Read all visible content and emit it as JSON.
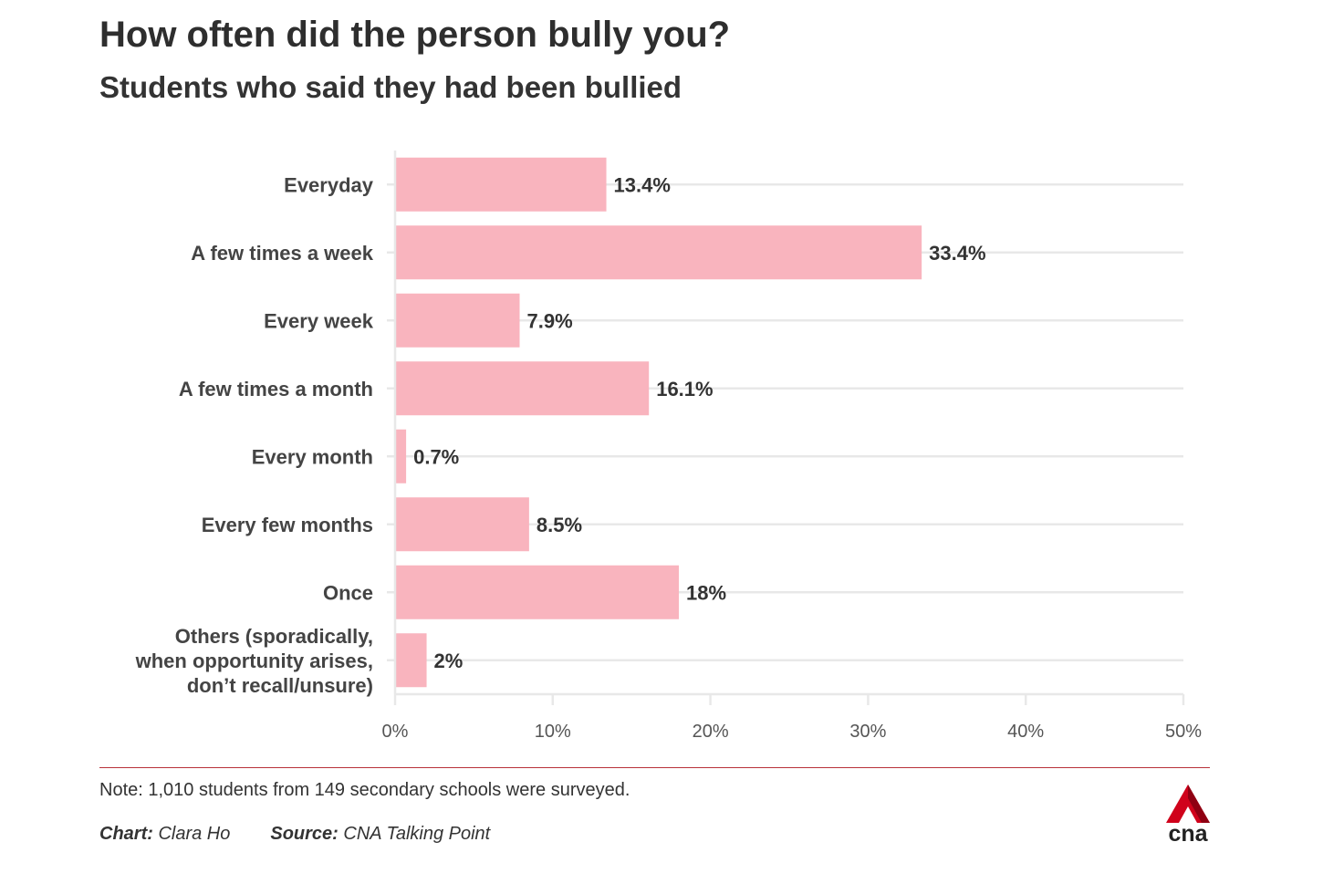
{
  "header": {
    "title": "How often did the person bully you?",
    "subtitle": "Students who said they had been bullied"
  },
  "chart_data": {
    "type": "bar",
    "orientation": "horizontal",
    "categories": [
      [
        "Everyday"
      ],
      [
        "A few times a week"
      ],
      [
        "Every week"
      ],
      [
        "A few times a month"
      ],
      [
        "Every month"
      ],
      [
        "Every few months"
      ],
      [
        "Once"
      ],
      [
        "Others (sporadically,",
        "when opportunity arises,",
        "don’t recall/unsure)"
      ]
    ],
    "values": [
      13.4,
      33.4,
      7.9,
      16.1,
      0.7,
      8.5,
      18,
      2
    ],
    "value_labels": [
      "13.4%",
      "33.4%",
      "7.9%",
      "16.1%",
      "0.7%",
      "8.5%",
      "18%",
      "2%"
    ],
    "xlim": [
      0,
      50
    ],
    "x_ticks": [
      0,
      10,
      20,
      30,
      40,
      50
    ],
    "x_tick_labels": [
      "0%",
      "10%",
      "20%",
      "30%",
      "40%",
      "50%"
    ],
    "grid": true,
    "bar_color": "#f9b4be",
    "grid_color": "#e8e8e8"
  },
  "footer": {
    "note": "Note: 1,010 students from 149 secondary schools were surveyed.",
    "chart_label": "Chart:",
    "chart_author": " Clara Ho",
    "source_label": "Source:",
    "source_name": " CNA Talking Point",
    "rule_color": "#b8323a"
  },
  "logo": {
    "text": "cna",
    "icon": "cna-logo-icon",
    "color": "#d0021b"
  }
}
